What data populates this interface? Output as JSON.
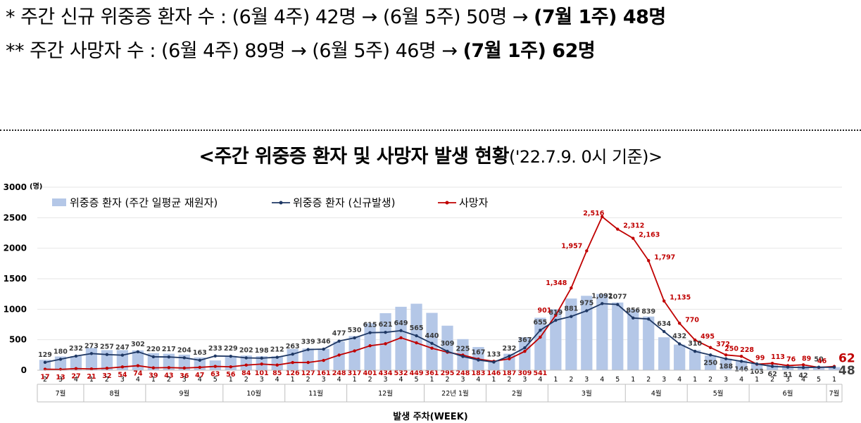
{
  "notes": {
    "line1_prefix": "* 주간 신규 위중증 환자 수 : (6월 4주) 42명 → (6월 5주) 50명 → ",
    "line1_bold": "(7월 1주) 48명",
    "line2_prefix": "** 주간 사망자 수 : (6월 4주) 89명 → (6월 5주) 46명 → ",
    "line2_bold": "(7월 1주) 62명"
  },
  "chart_title": {
    "main": "<주간 위중증 환자 및 사망자 발생 현황",
    "sub": "('22.7.9. 0시 기준)>"
  },
  "colors": {
    "bar": "#b4c7e7",
    "severe_line": "#1f3864",
    "death_line": "#c00000",
    "last_severe": "#404040"
  },
  "chart_data": {
    "type": "bar+line",
    "xlabel": "발생 주차(WEEK)",
    "ylabel": "(명)",
    "ylim": [
      0,
      3000
    ],
    "yticks": [
      0,
      500,
      1000,
      1500,
      2000,
      2500,
      3000
    ],
    "x": [
      "2",
      "3",
      "4",
      "1",
      "2",
      "3",
      "4",
      "1",
      "2",
      "3",
      "4",
      "5",
      "1",
      "2",
      "3",
      "4",
      "1",
      "2",
      "3",
      "4",
      "1",
      "2",
      "3",
      "4",
      "5",
      "1",
      "2",
      "3",
      "4",
      "1",
      "2",
      "3",
      "4",
      "1",
      "2",
      "3",
      "4",
      "5",
      "1",
      "2",
      "3",
      "4",
      "1",
      "2",
      "3",
      "4",
      "1",
      "2",
      "3",
      "4",
      "5",
      "1"
    ],
    "months": [
      {
        "label": "7월",
        "weeks": 3
      },
      {
        "label": "8월",
        "weeks": 4
      },
      {
        "label": "9월",
        "weeks": 5
      },
      {
        "label": "10월",
        "weeks": 4
      },
      {
        "label": "11월",
        "weeks": 4
      },
      {
        "label": "12월",
        "weeks": 5
      },
      {
        "label": "22년 1월",
        "weeks": 4
      },
      {
        "label": "2월",
        "weeks": 4
      },
      {
        "label": "3월",
        "weeks": 5
      },
      {
        "label": "4월",
        "weeks": 4
      },
      {
        "label": "5월",
        "weeks": 4
      },
      {
        "label": "6월",
        "weeks": 5
      },
      {
        "label": "7월",
        "weeks": 1
      }
    ],
    "series": [
      {
        "name": "위중증 환자 (주간 일평균 재원자)",
        "type": "bar",
        "values": [
          170,
          225,
          232,
          365,
          330,
          330,
          325,
          280,
          270,
          255,
          210,
          160,
          235,
          240,
          230,
          230,
          350,
          355,
          350,
          470,
          560,
          770,
          935,
          1040,
          1090,
          940,
          730,
          510,
          380,
          150,
          270,
          540,
          860,
          1000,
          1175,
          1220,
          1250,
          1110,
          1000,
          880,
          540,
          420,
          330,
          240,
          190,
          165,
          110,
          100,
          80,
          70,
          55,
          50
        ]
      },
      {
        "name": "위중증 환자 (신규발생)",
        "type": "line",
        "values": [
          129,
          180,
          232,
          273,
          257,
          247,
          302,
          220,
          217,
          204,
          163,
          233,
          229,
          202,
          198,
          212,
          263,
          339,
          346,
          477,
          530,
          615,
          621,
          649,
          565,
          440,
          309,
          225,
          167,
          133,
          232,
          367,
          655,
          819,
          881,
          975,
          1092,
          1077,
          856,
          839,
          634,
          432,
          310,
          250,
          188,
          146,
          103,
          62,
          51,
          42,
          50,
          48
        ],
        "labels": [
          "129",
          "180",
          "232",
          "273",
          "257",
          "247",
          "302",
          "220",
          "217",
          "204",
          "163",
          "233",
          "229",
          "202",
          "198",
          "212",
          "263",
          "339",
          "346",
          "477",
          "530",
          "615",
          "621",
          "649",
          "565",
          "440",
          "309",
          "225",
          "167",
          "133",
          "232",
          "367",
          "655",
          "819",
          "881",
          "975",
          "1,092",
          "1077",
          "856",
          "839",
          "634",
          "432",
          "310",
          "250",
          "188",
          "146",
          "103",
          "62",
          "51",
          "42",
          "50",
          "48"
        ]
      },
      {
        "name": "사망자",
        "type": "line",
        "values": [
          17,
          13,
          27,
          21,
          32,
          54,
          74,
          39,
          43,
          36,
          47,
          63,
          56,
          84,
          101,
          85,
          126,
          127,
          161,
          248,
          317,
          401,
          434,
          532,
          449,
          361,
          295,
          248,
          183,
          146,
          187,
          309,
          541,
          901,
          1348,
          1957,
          2516,
          2312,
          2163,
          1797,
          1135,
          770,
          495,
          372,
          250,
          228,
          99,
          113,
          76,
          89,
          46,
          62
        ],
        "labels": [
          "17",
          "13",
          "27",
          "21",
          "32",
          "54",
          "74",
          "39",
          "43",
          "36",
          "47",
          "63",
          "56",
          "84",
          "101",
          "85",
          "126",
          "127",
          "161",
          "248",
          "317",
          "401",
          "434",
          "532",
          "449",
          "361",
          "295",
          "248",
          "183",
          "146",
          "187",
          "309",
          "541",
          "901",
          "1,348",
          "1,957",
          "2,516",
          "2,312",
          "2,163",
          "1,797",
          "1,135",
          "770",
          "495",
          "372",
          "250",
          "228",
          "99",
          "113",
          "76",
          "89",
          "46",
          "62"
        ]
      }
    ]
  }
}
